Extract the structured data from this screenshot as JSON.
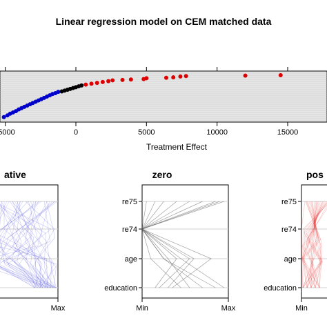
{
  "chart_data": [
    {
      "type": "scatter",
      "title": "Linear regression model on CEM matched data",
      "xlabel": "Treatment Effect",
      "ylabel": "",
      "xlim": [
        -5000,
        15000
      ],
      "x_ticks": [
        -5000,
        0,
        5000,
        10000,
        15000
      ],
      "x_tick_labels": [
        "-5000",
        "0",
        "5000",
        "10000",
        "15000"
      ],
      "y_range": [
        0,
        1
      ],
      "background": "#e6e6e6",
      "grid": true,
      "colors": {
        "negative": "#0000cc",
        "zero": "#000000",
        "positive": "#dd0000"
      },
      "points": [
        {
          "x": -5100,
          "y": 0.02,
          "group": "negative"
        },
        {
          "x": -4850,
          "y": 0.06,
          "group": "negative"
        },
        {
          "x": -4650,
          "y": 0.1,
          "group": "negative"
        },
        {
          "x": -4450,
          "y": 0.13,
          "group": "negative"
        },
        {
          "x": -4250,
          "y": 0.16,
          "group": "negative"
        },
        {
          "x": -4050,
          "y": 0.2,
          "group": "negative"
        },
        {
          "x": -3850,
          "y": 0.23,
          "group": "negative"
        },
        {
          "x": -3650,
          "y": 0.26,
          "group": "negative"
        },
        {
          "x": -3450,
          "y": 0.29,
          "group": "negative"
        },
        {
          "x": -3250,
          "y": 0.32,
          "group": "negative"
        },
        {
          "x": -3050,
          "y": 0.35,
          "group": "negative"
        },
        {
          "x": -2850,
          "y": 0.38,
          "group": "negative"
        },
        {
          "x": -2650,
          "y": 0.41,
          "group": "negative"
        },
        {
          "x": -2450,
          "y": 0.44,
          "group": "negative"
        },
        {
          "x": -2250,
          "y": 0.47,
          "group": "negative"
        },
        {
          "x": -2050,
          "y": 0.5,
          "group": "negative"
        },
        {
          "x": -1850,
          "y": 0.53,
          "group": "negative"
        },
        {
          "x": -1650,
          "y": 0.56,
          "group": "negative"
        },
        {
          "x": -1450,
          "y": 0.58,
          "group": "negative"
        },
        {
          "x": -1250,
          "y": 0.61,
          "group": "negative"
        },
        {
          "x": -1000,
          "y": 0.62,
          "group": "zero"
        },
        {
          "x": -800,
          "y": 0.64,
          "group": "zero"
        },
        {
          "x": -600,
          "y": 0.66,
          "group": "zero"
        },
        {
          "x": -400,
          "y": 0.68,
          "group": "zero"
        },
        {
          "x": -200,
          "y": 0.7,
          "group": "zero"
        },
        {
          "x": 0,
          "y": 0.72,
          "group": "zero"
        },
        {
          "x": 200,
          "y": 0.74,
          "group": "zero"
        },
        {
          "x": 400,
          "y": 0.76,
          "group": "zero"
        },
        {
          "x": 700,
          "y": 0.78,
          "group": "positive"
        },
        {
          "x": 1100,
          "y": 0.8,
          "group": "positive"
        },
        {
          "x": 1500,
          "y": 0.82,
          "group": "positive"
        },
        {
          "x": 1900,
          "y": 0.84,
          "group": "positive"
        },
        {
          "x": 2300,
          "y": 0.86,
          "group": "positive"
        },
        {
          "x": 2600,
          "y": 0.88,
          "group": "positive"
        },
        {
          "x": 3300,
          "y": 0.89,
          "group": "positive"
        },
        {
          "x": 3900,
          "y": 0.9,
          "group": "positive"
        },
        {
          "x": 4800,
          "y": 0.91,
          "group": "positive"
        },
        {
          "x": 5000,
          "y": 0.93,
          "group": "positive"
        },
        {
          "x": 6400,
          "y": 0.94,
          "group": "positive"
        },
        {
          "x": 6900,
          "y": 0.95,
          "group": "positive"
        },
        {
          "x": 7400,
          "y": 0.97,
          "group": "positive"
        },
        {
          "x": 7800,
          "y": 0.98,
          "group": "positive"
        },
        {
          "x": 12000,
          "y": 0.99,
          "group": "positive"
        },
        {
          "x": 14500,
          "y": 1.0,
          "group": "positive"
        }
      ]
    },
    {
      "type": "line",
      "title": "ative",
      "y_tick_labels": [],
      "x_tick_labels": [
        "Max"
      ],
      "color": "#0000cc"
    },
    {
      "type": "line",
      "title": "zero",
      "y_tick_labels": [
        "re75",
        "re74",
        "age",
        "education"
      ],
      "x_tick_labels": [
        "Min",
        "Max"
      ],
      "color": "#000000"
    },
    {
      "type": "line",
      "title": "pos",
      "y_tick_labels": [
        "re75",
        "re74",
        "age",
        "education"
      ],
      "x_tick_labels": [
        "Min"
      ],
      "color": "#dd0000"
    }
  ]
}
